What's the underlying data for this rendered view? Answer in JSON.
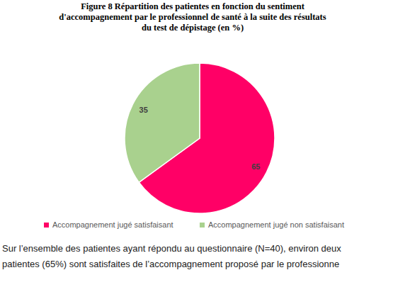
{
  "chart_data": {
    "type": "pie",
    "title": "Figure 8 Répartition des patientes en fonction du sentiment\nd'accompagnement par le professionnel de santé à la suite des résultats\ndu test de dépistage (en %)",
    "categories": [
      "Accompagnement jugé satisfaisant",
      "Accompagnement jugé non satisfaisant"
    ],
    "values": [
      65,
      35
    ],
    "colors": [
      "#FF0066",
      "#A9D18E"
    ],
    "data_labels": true,
    "legend": "bottom"
  },
  "text": {
    "paragraph": [
      "Sur l’ensemble des patientes ayant répondu au questionnaire (N=40), environ deux",
      "patientes (65%) sont satisfaites de l’accompagnement proposé par le professionne"
    ]
  }
}
